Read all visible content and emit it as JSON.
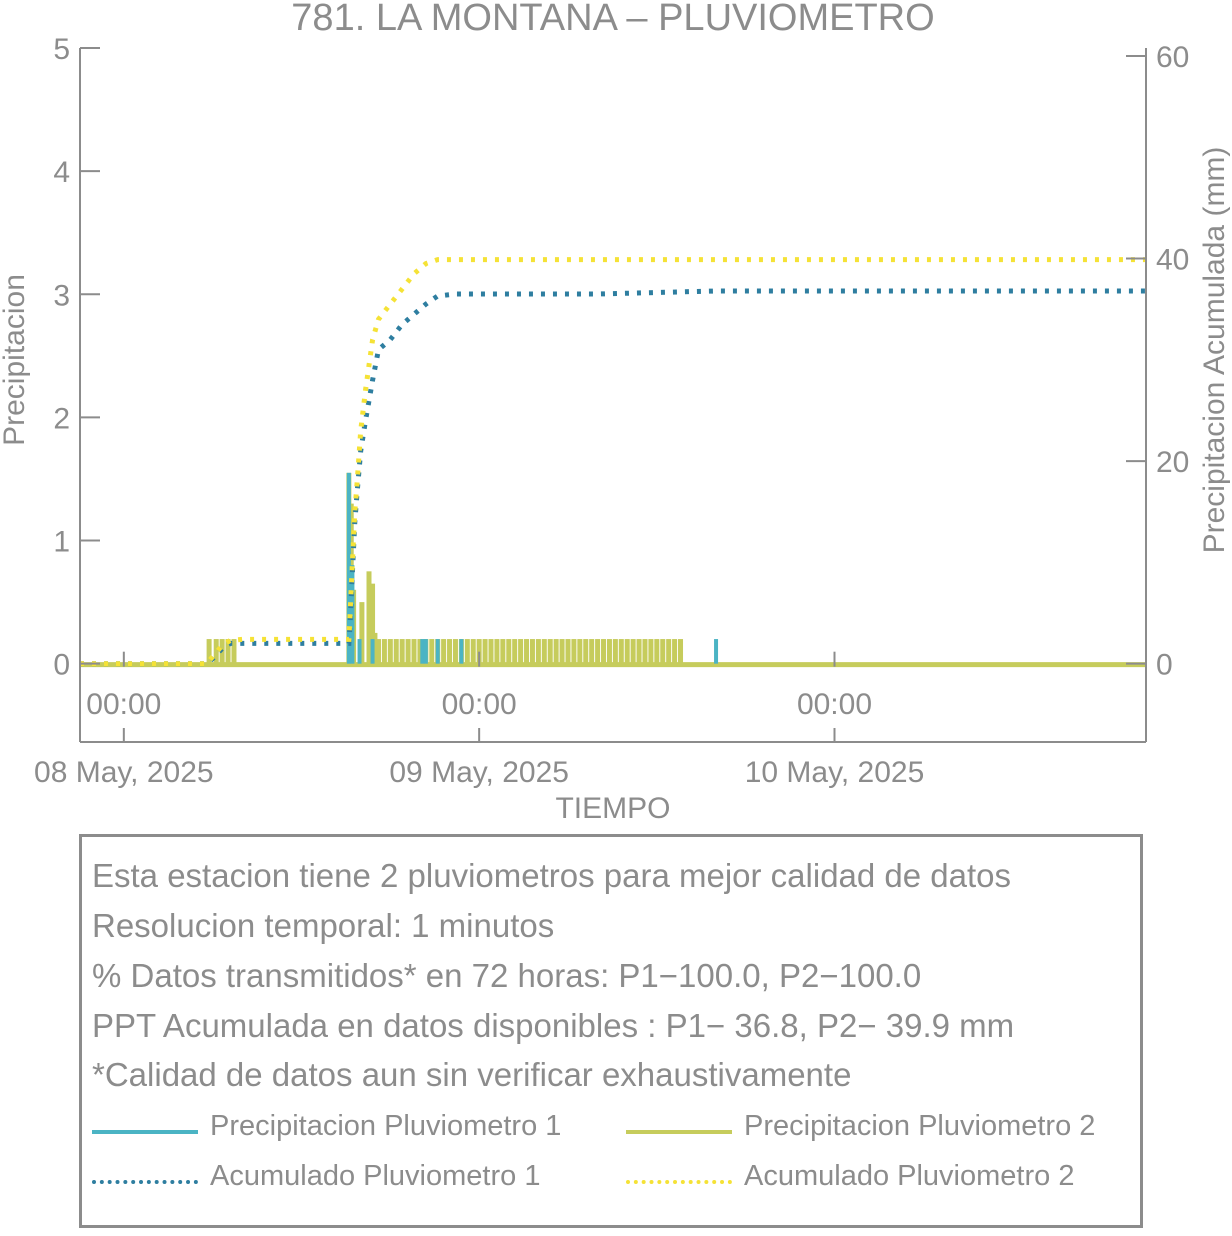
{
  "chart_data": {
    "type": "line",
    "title": "781. LA MONTANA – PLUVIOMETRO",
    "xlabel": "TIEMPO",
    "ylabel_left": "Precipitacion",
    "ylabel_right": "Precipitacion Acumulada (mm)",
    "x_range_hours": [
      -3.7,
      86.3
    ],
    "ylim_left": [
      -0.1,
      5
    ],
    "ylim_right": [
      0,
      60
    ],
    "y_ticks_left": [
      0,
      1,
      2,
      3,
      4,
      5
    ],
    "y_ticks_right": [
      0,
      20,
      40,
      60
    ],
    "x_ticks": [
      {
        "hour": 0,
        "time": "00:00",
        "date": "08 May, 2025"
      },
      {
        "hour": 30,
        "time": "00:00",
        "date": "09 May, 2025"
      },
      {
        "hour": 60,
        "time": "00:00",
        "date": "10 May, 2025"
      }
    ],
    "series": [
      {
        "name": "Precipitacion Pluviometro 1",
        "axis": "left",
        "style": "solid",
        "color": "#4bb4c4",
        "bars": [
          [
            19.9,
            0.2
          ],
          [
            21.0,
            0.2
          ],
          [
            19.0,
            1.55
          ],
          [
            19.3,
            0.8
          ],
          [
            25.2,
            0.2
          ],
          [
            25.5,
            0.2
          ],
          [
            26.5,
            0.2
          ],
          [
            28.5,
            0.2
          ],
          [
            50.0,
            0.2
          ]
        ]
      },
      {
        "name": "Precipitacion Pluviometro 2",
        "axis": "left",
        "style": "solid",
        "color": "#c6cc5c",
        "bars": [
          [
            7.2,
            0.2
          ],
          [
            7.8,
            0.2
          ],
          [
            8.3,
            0.2
          ],
          [
            8.8,
            0.2
          ],
          [
            9.3,
            0.2
          ],
          [
            19.0,
            1.55
          ],
          [
            19.2,
            1.3
          ],
          [
            19.4,
            0.6
          ],
          [
            20.1,
            0.5
          ],
          [
            20.7,
            0.75
          ],
          [
            21.0,
            0.65
          ],
          [
            21.2,
            0.25
          ],
          [
            21.5,
            0.2
          ],
          [
            22.0,
            0.2
          ],
          [
            22.5,
            0.2
          ],
          [
            23.0,
            0.2
          ],
          [
            23.5,
            0.2
          ],
          [
            24.0,
            0.2
          ],
          [
            24.5,
            0.2
          ],
          [
            25.0,
            0.2
          ],
          [
            25.5,
            0.2
          ],
          [
            26.0,
            0.2
          ],
          [
            26.5,
            0.2
          ],
          [
            27.0,
            0.2
          ],
          [
            27.5,
            0.2
          ],
          [
            28.0,
            0.2
          ],
          [
            28.5,
            0.2
          ],
          [
            29.0,
            0.2
          ],
          [
            29.5,
            0.2
          ],
          [
            30.0,
            0.2
          ],
          [
            30.5,
            0.2
          ],
          [
            31.0,
            0.2
          ],
          [
            31.5,
            0.2
          ],
          [
            32.0,
            0.2
          ],
          [
            32.5,
            0.2
          ],
          [
            33.0,
            0.2
          ],
          [
            33.5,
            0.2
          ],
          [
            34.0,
            0.2
          ],
          [
            34.5,
            0.2
          ],
          [
            35.0,
            0.2
          ],
          [
            35.5,
            0.2
          ],
          [
            36.0,
            0.2
          ],
          [
            36.5,
            0.2
          ],
          [
            37.0,
            0.2
          ],
          [
            37.5,
            0.2
          ],
          [
            38.0,
            0.2
          ],
          [
            38.5,
            0.2
          ],
          [
            39.0,
            0.2
          ],
          [
            39.5,
            0.2
          ],
          [
            40.0,
            0.2
          ],
          [
            40.5,
            0.2
          ],
          [
            41.0,
            0.2
          ],
          [
            41.5,
            0.2
          ],
          [
            42.0,
            0.2
          ],
          [
            42.5,
            0.2
          ],
          [
            43.0,
            0.2
          ],
          [
            43.5,
            0.2
          ],
          [
            44.0,
            0.2
          ],
          [
            44.5,
            0.2
          ],
          [
            45.0,
            0.2
          ],
          [
            45.5,
            0.2
          ],
          [
            46.0,
            0.2
          ],
          [
            46.5,
            0.2
          ],
          [
            47.0,
            0.2
          ]
        ]
      },
      {
        "name": "Acumulado Pluviometro 1",
        "axis": "right",
        "style": "dotted",
        "color": "#2e7ea0",
        "points": [
          [
            -3.7,
            0
          ],
          [
            7.0,
            0
          ],
          [
            7.5,
            0.5
          ],
          [
            8.3,
            1.5
          ],
          [
            9.0,
            2.0
          ],
          [
            10.0,
            2.0
          ],
          [
            19.0,
            2.0
          ],
          [
            19.1,
            4
          ],
          [
            19.3,
            9
          ],
          [
            19.5,
            14
          ],
          [
            19.7,
            17
          ],
          [
            20.0,
            21
          ],
          [
            20.4,
            24
          ],
          [
            21.0,
            28
          ],
          [
            21.5,
            31
          ],
          [
            22.5,
            32
          ],
          [
            23.5,
            33.5
          ],
          [
            24.5,
            34.5
          ],
          [
            25.5,
            35.5
          ],
          [
            26.5,
            36.3
          ],
          [
            28.0,
            36.5
          ],
          [
            40.0,
            36.5
          ],
          [
            50.0,
            36.8
          ],
          [
            86.3,
            36.8
          ]
        ]
      },
      {
        "name": "Acumulado Pluviometro 2",
        "axis": "right",
        "style": "dotted",
        "color": "#f5e236",
        "points": [
          [
            -3.7,
            0
          ],
          [
            7.0,
            0
          ],
          [
            7.5,
            0.7
          ],
          [
            8.3,
            1.8
          ],
          [
            9.0,
            2.3
          ],
          [
            10.0,
            2.4
          ],
          [
            19.0,
            2.4
          ],
          [
            19.1,
            5
          ],
          [
            19.3,
            10
          ],
          [
            19.5,
            15
          ],
          [
            19.7,
            18
          ],
          [
            20.0,
            23
          ],
          [
            20.4,
            27
          ],
          [
            21.0,
            32
          ],
          [
            21.5,
            34
          ],
          [
            22.5,
            35.5
          ],
          [
            23.5,
            37
          ],
          [
            24.5,
            38.5
          ],
          [
            25.5,
            39.5
          ],
          [
            26.5,
            39.9
          ],
          [
            86.3,
            39.9
          ]
        ]
      }
    ]
  },
  "info": {
    "lines": [
      "Esta estacion tiene 2 pluviometros para mejor calidad de datos",
      "Resolucion temporal: 1 minutos",
      "% Datos transmitidos* en 72 horas: P1−100.0, P2−100.0",
      "PPT Acumulada en datos disponibles : P1− 36.8, P2− 39.9 mm",
      "*Calidad de datos aun sin verificar exhaustivamente"
    ]
  },
  "legend": {
    "items": [
      {
        "label": "Precipitacion Pluviometro 1",
        "color": "#4bb4c4",
        "style": "solid"
      },
      {
        "label": "Precipitacion Pluviometro 2",
        "color": "#c6cc5c",
        "style": "solid"
      },
      {
        "label": "Acumulado Pluviometro 1",
        "color": "#2e7ea0",
        "style": "dotted"
      },
      {
        "label": "Acumulado Pluviometro 2",
        "color": "#f5e236",
        "style": "dotted"
      }
    ]
  },
  "colors": {
    "axis": "#8c8c8c",
    "text": "#8c8c8c"
  }
}
